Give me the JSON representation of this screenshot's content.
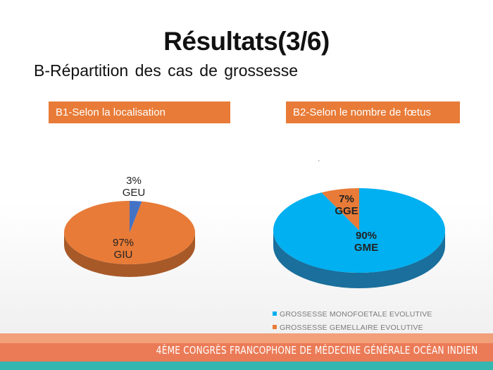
{
  "slide": {
    "title": "Résultats(3/6)",
    "subtitle": "B-Répartition des cas de grossesse",
    "footer": "4ÈME CONGRÈS FRANCOPHONE DE MÉDECINE GÉNÉRALE OCÉAN INDIEN",
    "stray_mark": "‘"
  },
  "colors": {
    "orange": "#E87B37",
    "blue": "#4472C4",
    "cyan": "#00B0F0",
    "footer_top": "#F2A07A",
    "footer_mid": "#EB7B57",
    "footer_bottom": "#33B7B0"
  },
  "chart_data": [
    {
      "type": "pie",
      "title": "B1-Selon la localisation",
      "style": "3d",
      "slices": [
        {
          "pct_label": "3%",
          "name": "GEU",
          "value": 3,
          "color": "#4472C4"
        },
        {
          "pct_label": "97%",
          "name": "GIU",
          "value": 97,
          "color": "#E87B37"
        }
      ]
    },
    {
      "type": "pie",
      "title": "B2-Selon le nombre de fœtus",
      "style": "3d",
      "slices": [
        {
          "pct_label": "7%",
          "name": "GGE",
          "value": 7,
          "color": "#E87B37"
        },
        {
          "pct_label": "90%",
          "name": "GME",
          "value": 90,
          "color": "#00B0F0"
        }
      ],
      "legend": [
        {
          "label": "GROSSESSE MONOFOETALE EVOLUTIVE",
          "color": "#00B0F0"
        },
        {
          "label": "GROSSESSE GEMELLAIRE EVOLUTIVE",
          "color": "#E87B37"
        }
      ],
      "legend_position": "bottom"
    }
  ]
}
